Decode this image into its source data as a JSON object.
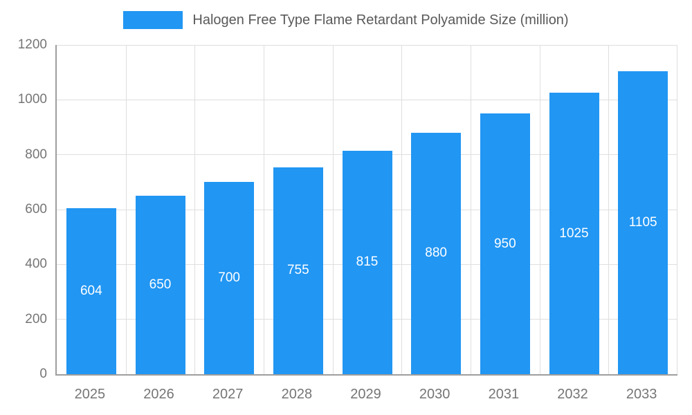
{
  "legend": {
    "label": "Halogen Free Type Flame Retardant Polyamide Size (million)"
  },
  "chart_data": {
    "type": "bar",
    "title": "Halogen Free Type Flame Retardant Polyamide Size (million)",
    "categories": [
      "2025",
      "2026",
      "2027",
      "2028",
      "2029",
      "2030",
      "2031",
      "2032",
      "2033"
    ],
    "values": [
      604,
      650,
      700,
      755,
      815,
      880,
      950,
      1025,
      1105
    ],
    "xlabel": "",
    "ylabel": "",
    "ylim": [
      0,
      1200
    ],
    "yticks": [
      0,
      200,
      400,
      600,
      800,
      1000,
      1200
    ],
    "grid": true,
    "legend_position": "top-center",
    "bar_color": "#2196F3",
    "value_label_color": "#ffffff",
    "grid_color": "#dedede",
    "axis_color": "#9e9e9e",
    "tick_label_color": "#757575"
  }
}
